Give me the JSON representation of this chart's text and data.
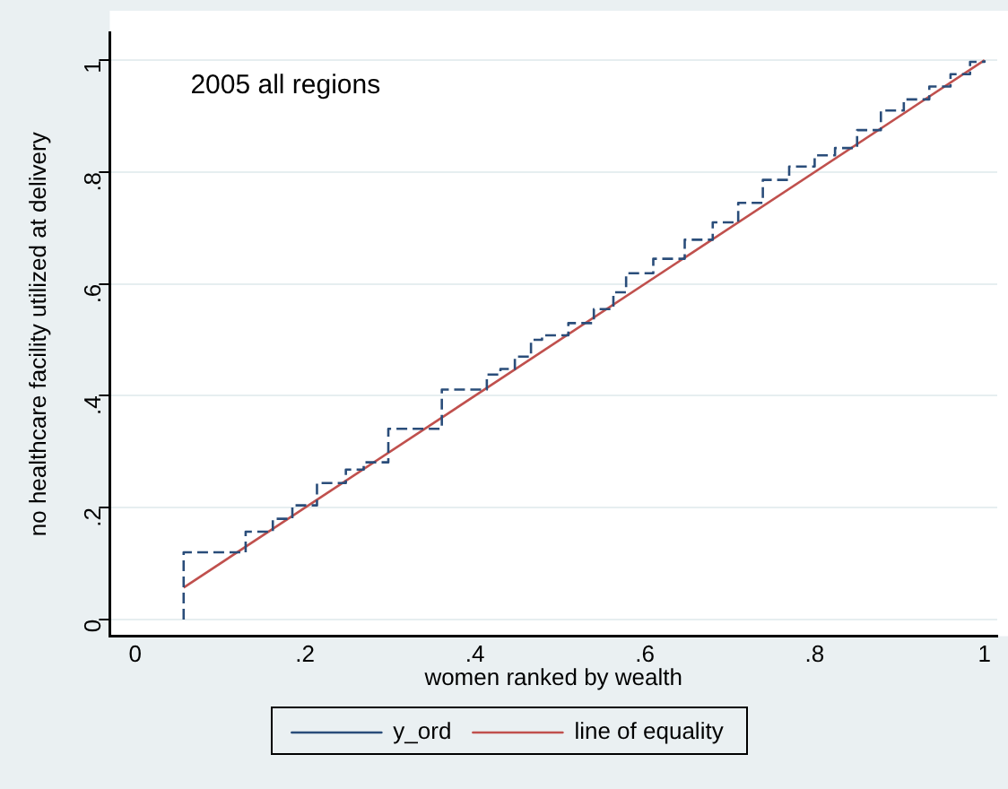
{
  "chart_data": {
    "type": "line",
    "xlabel": "women ranked by wealth",
    "ylabel": "no healthcare facility utilized at delivery",
    "annotations": [
      "2005 all regions"
    ],
    "xlim": [
      -0.03,
      1.015
    ],
    "ylim": [
      -0.03,
      1.05
    ],
    "xticks": [
      0,
      {
        "value": 0.2,
        "label": ".2"
      },
      {
        "value": 0.4,
        "label": ".4"
      },
      {
        "value": 0.6,
        "label": ".6"
      },
      {
        "value": 0.8,
        "label": ".8"
      },
      1
    ],
    "yticks": [
      0,
      {
        "value": 0.2,
        "label": ".2"
      },
      {
        "value": 0.4,
        "label": ".4"
      },
      {
        "value": 0.6,
        "label": ".6"
      },
      {
        "value": 0.8,
        "label": ".8"
      },
      1
    ],
    "grid": "y",
    "legend": "bottom",
    "marker": "none",
    "series": [
      {
        "name": "y_ord",
        "type": "step",
        "color": "#2a4d7a",
        "line_style": "dashed",
        "x": [
          0.057,
          0.057,
          0.13,
          0.162,
          0.185,
          0.214,
          0.248,
          0.269,
          0.298,
          0.361,
          0.414,
          0.43,
          0.447,
          0.466,
          0.479,
          0.51,
          0.54,
          0.563,
          0.578,
          0.61,
          0.647,
          0.68,
          0.71,
          0.739,
          0.77,
          0.8,
          0.824,
          0.85,
          0.878,
          0.905,
          0.935,
          0.96,
          0.983,
          1
        ],
        "values": [
          0,
          0.12,
          0.157,
          0.18,
          0.204,
          0.244,
          0.268,
          0.281,
          0.341,
          0.411,
          0.438,
          0.448,
          0.47,
          0.5,
          0.508,
          0.53,
          0.555,
          0.585,
          0.619,
          0.645,
          0.679,
          0.71,
          0.745,
          0.786,
          0.81,
          0.83,
          0.843,
          0.875,
          0.91,
          0.93,
          0.953,
          0.975,
          0.997,
          1
        ]
      },
      {
        "name": "line of equality",
        "type": "line",
        "color": "#c0504d",
        "line_style": "solid",
        "x": [
          0.057,
          1
        ],
        "values": [
          0.057,
          1
        ]
      }
    ]
  }
}
